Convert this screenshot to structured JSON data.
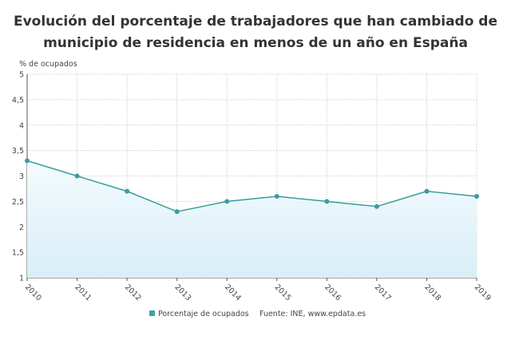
{
  "chart_data": {
    "type": "area",
    "title": [
      "Evolución del porcentaje de trabajadores que han cambiado de",
      "municipio de residencia en menos de un año en España"
    ],
    "ylabel": "% de ocupados",
    "xlabel": "",
    "categories": [
      "2010",
      "2011",
      "2012",
      "2013",
      "2014",
      "2015",
      "2016",
      "2017",
      "2018",
      "2019"
    ],
    "series": [
      {
        "name": "Porcentaje de ocupados",
        "values": [
          3.3,
          3.0,
          2.7,
          2.3,
          2.5,
          2.6,
          2.5,
          2.4,
          2.7,
          2.6
        ]
      }
    ],
    "ylim": [
      1,
      5
    ],
    "yticks": [
      "1",
      "1,5",
      "2",
      "2,5",
      "3",
      "3,5",
      "4",
      "4,5",
      "5"
    ],
    "grid": true,
    "legend": "bottom",
    "source": "Fuente: INE, www.epdata.es",
    "colors": {
      "line": "#3a9e9a",
      "marker": "#3a9aa8",
      "fill_top": "#f4fbfd",
      "fill_bottom": "#d8eef7",
      "legend_marker": "#3aa6a8"
    }
  }
}
